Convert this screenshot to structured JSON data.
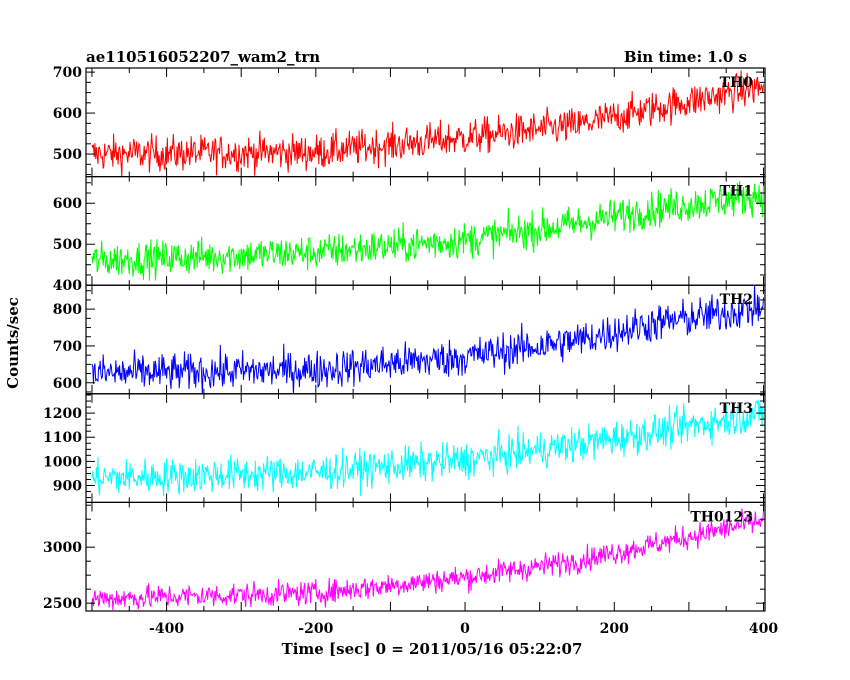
{
  "header": {
    "title": "ae110516052207_wam2_trn",
    "bin_time": "Bin time: 1.0 s"
  },
  "chart_data": {
    "type": "line",
    "title": "ae110516052207_wam2_trn",
    "xlabel": "Time [sec] 0 = 2011/05/16 05:22:07",
    "ylabel": "Counts/sec",
    "xlim": [
      -508,
      402
    ],
    "x_ticks": [
      -400,
      -200,
      0,
      200,
      400
    ],
    "x_range": [
      -500,
      400
    ],
    "x_step": 1,
    "panels": [
      {
        "name": "TH0",
        "color": "#ff0000",
        "ylim": [
          445,
          710
        ],
        "y_ticks": [
          500,
          600,
          700
        ],
        "trend": [
          [
            -500,
            500
          ],
          [
            -200,
            505
          ],
          [
            0,
            540
          ],
          [
            150,
            570
          ],
          [
            250,
            610
          ],
          [
            400,
            665
          ]
        ],
        "noise": 22
      },
      {
        "name": "TH1",
        "color": "#00ff00",
        "ylim": [
          400,
          665
        ],
        "y_ticks": [
          400,
          500,
          600
        ],
        "trend": [
          [
            -500,
            460
          ],
          [
            -200,
            480
          ],
          [
            0,
            510
          ],
          [
            150,
            550
          ],
          [
            250,
            585
          ],
          [
            400,
            620
          ]
        ],
        "noise": 22
      },
      {
        "name": "TH2",
        "color": "#0000ff",
        "ylim": [
          570,
          865
        ],
        "y_ticks": [
          600,
          700,
          800
        ],
        "trend": [
          [
            -500,
            625
          ],
          [
            -200,
            635
          ],
          [
            0,
            670
          ],
          [
            150,
            715
          ],
          [
            250,
            760
          ],
          [
            400,
            805
          ]
        ],
        "noise": 26
      },
      {
        "name": "TH3",
        "color": "#00ffff",
        "ylim": [
          830,
          1280
        ],
        "y_ticks": [
          900,
          1000,
          1100,
          1200
        ],
        "trend": [
          [
            -500,
            930
          ],
          [
            -200,
            955
          ],
          [
            0,
            1005
          ],
          [
            150,
            1070
          ],
          [
            250,
            1120
          ],
          [
            400,
            1200
          ]
        ],
        "noise": 38
      },
      {
        "name": "TH0123",
        "color": "#ff00ff",
        "ylim": [
          2430,
          3400
        ],
        "y_ticks": [
          2500,
          3000
        ],
        "trend": [
          [
            -500,
            2540
          ],
          [
            -200,
            2590
          ],
          [
            0,
            2730
          ],
          [
            150,
            2880
          ],
          [
            250,
            3020
          ],
          [
            400,
            3240
          ]
        ],
        "noise": 55
      }
    ]
  }
}
